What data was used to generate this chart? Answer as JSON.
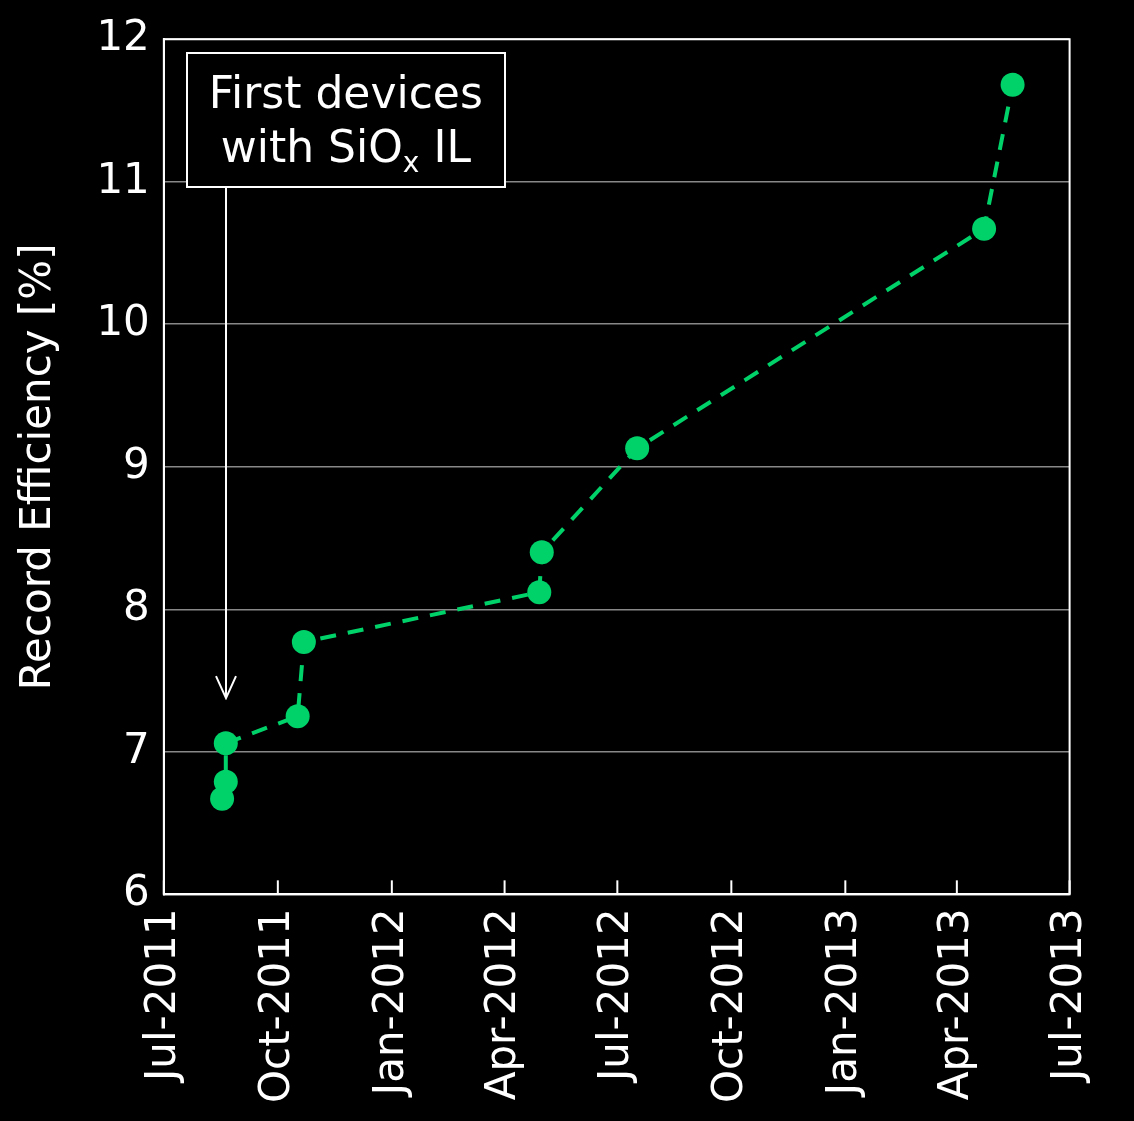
{
  "chart_data": {
    "type": "line",
    "ylabel": "Record Efficiency [%]",
    "x": [
      "2011-08-17",
      "2011-08-20",
      "2011-08-20",
      "2011-10-17",
      "2011-10-22",
      "2012-04-29",
      "2012-05-01",
      "2012-07-17",
      "2013-04-23",
      "2013-05-16"
    ],
    "series": [
      {
        "color": "#00d26a",
        "values": [
          6.67,
          6.79,
          7.06,
          7.25,
          7.77,
          8.12,
          8.4,
          9.13,
          10.67,
          11.68
        ]
      }
    ],
    "xlim": [
      "2011-07-01",
      "2013-07-01"
    ],
    "xticks": [
      {
        "value": "2011-07-01",
        "label": "Jul-2011"
      },
      {
        "value": "2011-10-01",
        "label": "Oct-2011"
      },
      {
        "value": "2012-01-01",
        "label": "Jan-2012"
      },
      {
        "value": "2012-04-01",
        "label": "Apr-2012"
      },
      {
        "value": "2012-07-01",
        "label": "Jul-2012"
      },
      {
        "value": "2012-10-01",
        "label": "Oct-2012"
      },
      {
        "value": "2013-01-01",
        "label": "Jan-2013"
      },
      {
        "value": "2013-04-01",
        "label": "Apr-2013"
      },
      {
        "value": "2013-07-01",
        "label": "Jul-2013"
      }
    ],
    "ylim": [
      6,
      12
    ],
    "yticks": [
      6,
      7,
      8,
      9,
      10,
      11,
      12
    ],
    "grid": "y",
    "legend": false,
    "marker": "circle",
    "line_style": "dashed",
    "annotations": [
      "First devices with SiO$_{x}$ IL"
    ]
  }
}
